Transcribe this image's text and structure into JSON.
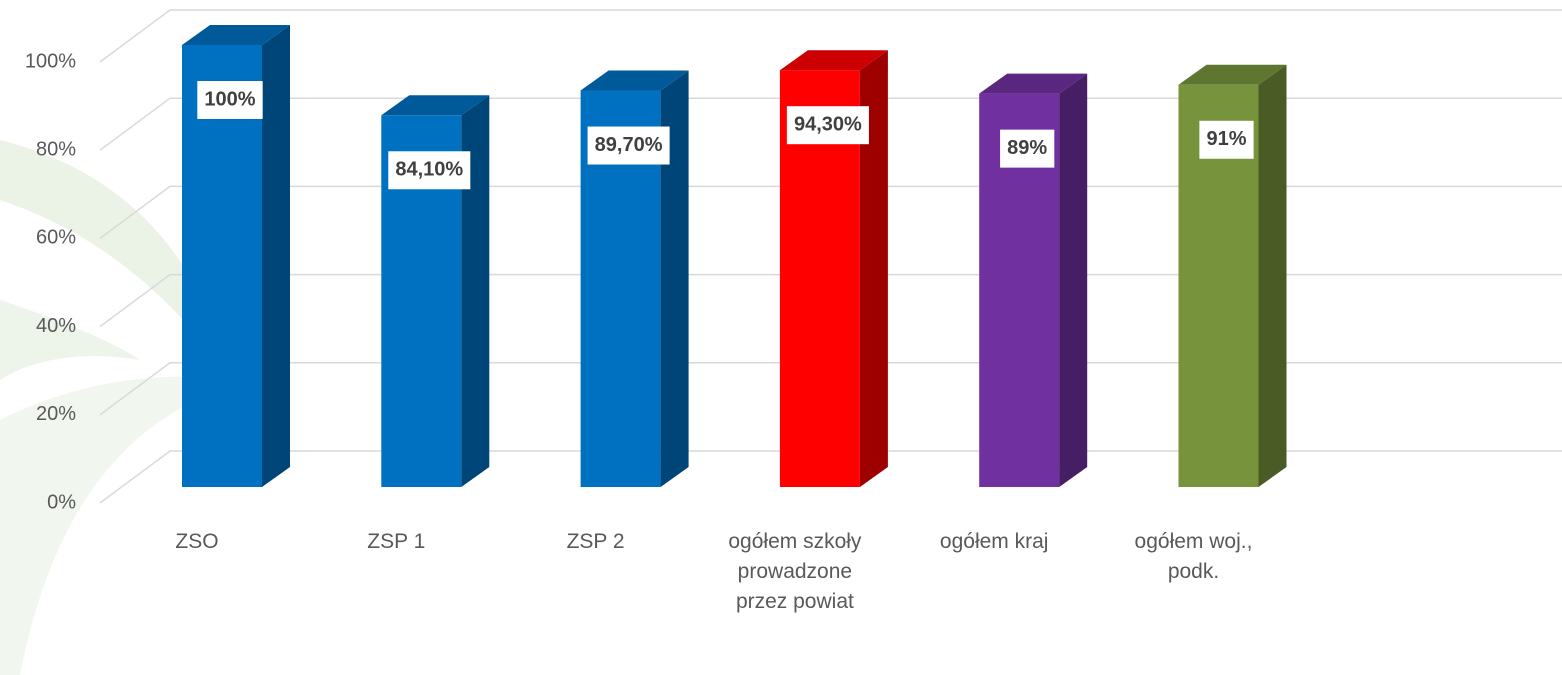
{
  "chart_data": {
    "type": "bar3d",
    "categories": [
      "ZSO",
      "ZSP 1",
      "ZSP 2",
      "ogółem szkoły prowadzone przez powiat",
      "ogółem kraj",
      "ogółem woj., podk."
    ],
    "values": [
      100,
      84.1,
      89.7,
      94.3,
      89,
      91
    ],
    "value_labels": [
      "100%",
      "84,10%",
      "89,70%",
      "94,30%",
      "89%",
      "91%"
    ],
    "colors": [
      "#0070c0",
      "#0070c0",
      "#0070c0",
      "#ff0000",
      "#7030a0",
      "#77933c"
    ],
    "ylim": [
      0,
      100
    ],
    "yticks": [
      {
        "value": 0,
        "label": "0%"
      },
      {
        "value": 20,
        "label": "20%"
      },
      {
        "value": 40,
        "label": "40%"
      },
      {
        "value": 60,
        "label": "60%"
      },
      {
        "value": 80,
        "label": "80%"
      },
      {
        "value": 100,
        "label": "100%"
      }
    ],
    "grid": true
  }
}
